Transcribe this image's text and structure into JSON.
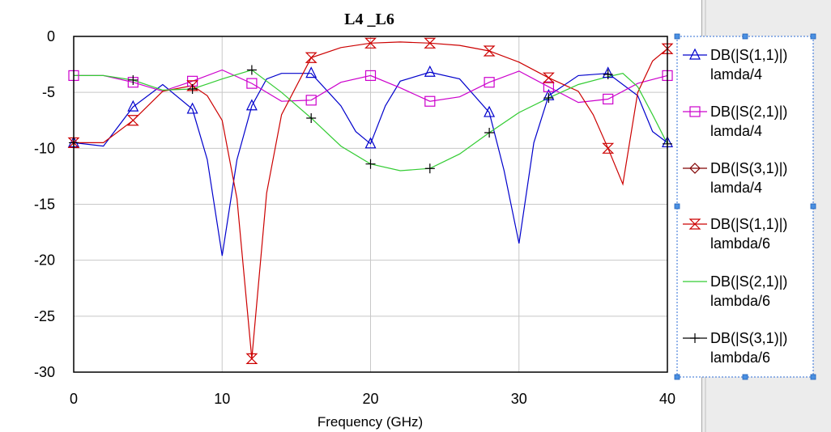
{
  "chart_data": {
    "type": "line",
    "title": "L4 _L6",
    "xlabel": "Frequency (GHz)",
    "ylabel": "",
    "xlim": [
      0,
      40
    ],
    "ylim": [
      -30,
      0
    ],
    "x_ticks": [
      0,
      10,
      20,
      30,
      40
    ],
    "y_ticks": [
      0,
      -5,
      -10,
      -15,
      -20,
      -25,
      -30
    ],
    "grid": true,
    "legend_position": "right",
    "series": [
      {
        "name": "DB(|S(1,1)|)",
        "name_line2": "lamda/4",
        "color": "#0000cc",
        "marker": "triangle",
        "x": [
          0,
          2,
          4,
          6,
          8,
          9,
          10,
          11,
          12,
          13,
          14,
          16,
          18,
          19,
          20,
          21,
          22,
          24,
          26,
          28,
          29,
          30,
          31,
          32,
          34,
          36,
          38,
          39,
          40
        ],
        "y": [
          -9.5,
          -9.8,
          -6.3,
          -4.3,
          -6.5,
          -11,
          -19.6,
          -11,
          -6.2,
          -3.8,
          -3.3,
          -3.3,
          -6.2,
          -8.5,
          -9.6,
          -6.2,
          -4.0,
          -3.2,
          -3.8,
          -6.8,
          -12,
          -18.5,
          -9.5,
          -5.3,
          -3.5,
          -3.3,
          -5.3,
          -8.5,
          -9.5
        ],
        "marker_x": [
          0,
          4,
          8,
          12,
          16,
          20,
          24,
          28,
          32,
          36,
          40
        ]
      },
      {
        "name": "DB(|S(2,1)|)",
        "name_line2": "lamda/4",
        "color": "#cc00cc",
        "marker": "square",
        "x": [
          0,
          2,
          4,
          6,
          8,
          10,
          12,
          14,
          16,
          18,
          20,
          22,
          24,
          26,
          28,
          30,
          32,
          34,
          36,
          38,
          40
        ],
        "y": [
          -3.5,
          -3.5,
          -4.1,
          -4.9,
          -4.0,
          -3.0,
          -4.2,
          -5.8,
          -5.7,
          -4.1,
          -3.5,
          -4.6,
          -5.8,
          -5.4,
          -4.1,
          -3.1,
          -4.5,
          -5.9,
          -5.6,
          -4.2,
          -3.5
        ],
        "marker_x": [
          0,
          4,
          8,
          12,
          16,
          20,
          24,
          28,
          32,
          36,
          40
        ]
      },
      {
        "name": "DB(|S(3,1)|)",
        "name_line2": "lamda/4",
        "color": "#800000",
        "marker": "diamond",
        "x": [],
        "y": [],
        "marker_x": []
      },
      {
        "name": "DB(|S(1,1)|)",
        "name_line2": "lambda/6",
        "color": "#cc0000",
        "marker": "hourglass",
        "x": [
          0,
          2,
          4,
          6,
          8,
          9,
          10,
          11,
          12,
          13,
          14,
          16,
          18,
          20,
          22,
          24,
          26,
          28,
          30,
          32,
          34,
          35,
          36,
          37,
          38,
          39,
          40
        ],
        "y": [
          -9.5,
          -9.5,
          -7.5,
          -4.9,
          -4.4,
          -5.3,
          -7.5,
          -14.5,
          -28.8,
          -14,
          -7.0,
          -1.9,
          -1.0,
          -0.6,
          -0.5,
          -0.6,
          -0.8,
          -1.3,
          -2.3,
          -3.7,
          -4.9,
          -7.0,
          -10.0,
          -13.2,
          -5.0,
          -2.2,
          -1.1
        ],
        "marker_x": [
          0,
          4,
          8,
          12,
          16,
          20,
          24,
          28,
          32,
          36,
          40
        ]
      },
      {
        "name": "DB(|S(2,1)|)",
        "name_line2": "lambda/6",
        "color": "#33cc33",
        "marker": "none",
        "x": [
          0,
          2,
          4,
          6,
          8,
          10,
          12,
          14,
          16,
          18,
          20,
          22,
          24,
          26,
          28,
          30,
          32,
          34,
          36,
          37,
          38,
          39,
          40
        ],
        "y": [
          -3.5,
          -3.5,
          -3.9,
          -4.8,
          -4.7,
          -3.8,
          -3.0,
          -5.0,
          -7.3,
          -9.8,
          -11.4,
          -12.0,
          -11.8,
          -10.5,
          -8.6,
          -6.8,
          -5.5,
          -4.3,
          -3.6,
          -3.3,
          -4.5,
          -7.0,
          -9.6
        ],
        "marker_x": []
      },
      {
        "name": "DB(|S(3,1)|)",
        "name_line2": "lambda/6",
        "color": "#000000",
        "marker": "plus",
        "x": [],
        "y": [],
        "marker_points": [
          [
            0,
            -9.5
          ],
          [
            4,
            -3.9
          ],
          [
            8,
            -4.7
          ],
          [
            12,
            -3.0
          ],
          [
            16,
            -7.3
          ],
          [
            20,
            -11.4
          ],
          [
            24,
            -11.8
          ],
          [
            28,
            -8.6
          ],
          [
            32,
            -5.5
          ],
          [
            36,
            -3.4
          ],
          [
            40,
            -9.6
          ]
        ]
      }
    ]
  }
}
